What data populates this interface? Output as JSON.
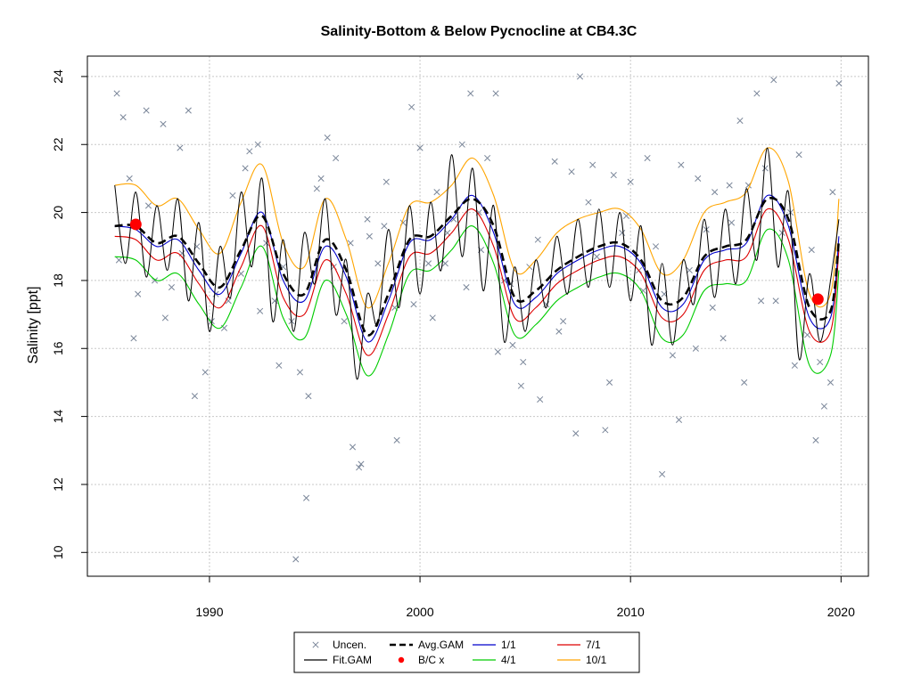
{
  "chart_data": {
    "type": "line",
    "title": "Salinity-Bottom & Below Pycnocline at CB4.3C",
    "xlabel": "",
    "ylabel": "Salinity [ppt]",
    "xlim": [
      1984.2,
      2021.3
    ],
    "ylim": [
      9.3,
      24.6
    ],
    "xticks": [
      1990,
      2000,
      2010,
      2020
    ],
    "yticks": [
      10,
      12,
      14,
      16,
      18,
      20,
      22,
      24
    ],
    "grid": true,
    "legend_position": "bottom-center",
    "legend": [
      {
        "label": "Uncen.",
        "kind": "marker-x",
        "color": "#7a8699"
      },
      {
        "label": "Avg.GAM",
        "kind": "dashed-line",
        "color": "#000000"
      },
      {
        "label": "1/1",
        "kind": "line",
        "color": "#0000cc"
      },
      {
        "label": "7/1",
        "kind": "line",
        "color": "#dd0000"
      },
      {
        "label": "Fit.GAM",
        "kind": "line",
        "color": "#000000"
      },
      {
        "label": "B/C x",
        "kind": "marker-dot",
        "color": "#ff0000"
      },
      {
        "label": "4/1",
        "kind": "line",
        "color": "#00cc00"
      },
      {
        "label": "10/1",
        "kind": "line",
        "color": "#ffa500"
      }
    ],
    "colors": {
      "uncen": "#7a8699",
      "avg": "#000000",
      "fit": "#000000",
      "d1_1": "#0000cc",
      "d7_1": "#dd0000",
      "d4_1": "#00cc00",
      "d10_1": "#ffa500",
      "bc": "#ff0000"
    },
    "series": [
      {
        "name": "Avg.GAM",
        "x": [
          1985.5,
          1986.5,
          1987.5,
          1988.5,
          1989.5,
          1990.5,
          1991.5,
          1992.5,
          1993.5,
          1994.5,
          1995.5,
          1996.5,
          1997.5,
          1998.5,
          1999.5,
          2000.5,
          2001.5,
          2002.5,
          2003.5,
          2004.5,
          2005.5,
          2006.5,
          2007.5,
          2008.5,
          2009.5,
          2010.5,
          2011.5,
          2012.5,
          2013.5,
          2014.5,
          2015.5,
          2016.5,
          2017.5,
          2018.5,
          2019.5,
          2019.9
        ],
        "y": [
          19.6,
          19.6,
          19.1,
          19.3,
          18.5,
          17.8,
          18.9,
          19.9,
          18.2,
          17.6,
          19.2,
          18.3,
          16.4,
          17.6,
          19.2,
          19.3,
          19.9,
          20.4,
          19.6,
          17.5,
          17.7,
          18.3,
          18.7,
          19.0,
          19.1,
          18.6,
          17.4,
          17.5,
          18.7,
          19.0,
          19.2,
          20.4,
          19.8,
          17.2,
          17.1,
          19.2
        ]
      },
      {
        "name": "1/1",
        "x": [
          1985.5,
          1986.5,
          1987.5,
          1988.5,
          1989.5,
          1990.5,
          1991.5,
          1992.5,
          1993.5,
          1994.5,
          1995.5,
          1996.5,
          1997.5,
          1998.5,
          1999.5,
          2000.5,
          2001.5,
          2002.5,
          2003.5,
          2004.5,
          2005.5,
          2006.5,
          2007.5,
          2008.5,
          2009.5,
          2010.5,
          2011.5,
          2012.5,
          2013.5,
          2014.5,
          2015.5,
          2016.5,
          2017.5,
          2018.5,
          2019.5,
          2019.9
        ],
        "y": [
          19.6,
          19.5,
          19.0,
          19.2,
          18.3,
          17.6,
          18.8,
          20.0,
          18.0,
          17.4,
          19.0,
          18.1,
          16.2,
          17.4,
          19.1,
          19.2,
          19.8,
          20.5,
          19.4,
          17.3,
          17.5,
          18.2,
          18.6,
          18.9,
          19.0,
          18.5,
          17.2,
          17.3,
          18.6,
          18.9,
          19.1,
          20.5,
          19.6,
          16.9,
          16.9,
          19.3
        ]
      },
      {
        "name": "7/1",
        "x": [
          1985.5,
          1986.5,
          1987.5,
          1988.5,
          1989.5,
          1990.5,
          1991.5,
          1992.5,
          1993.5,
          1994.5,
          1995.5,
          1996.5,
          1997.5,
          1998.5,
          1999.5,
          2000.5,
          2001.5,
          2002.5,
          2003.5,
          2004.5,
          2005.5,
          2006.5,
          2007.5,
          2008.5,
          2009.5,
          2010.5,
          2011.5,
          2012.5,
          2013.5,
          2014.5,
          2015.5,
          2016.5,
          2017.5,
          2018.5,
          2019.5,
          2019.9
        ],
        "y": [
          19.3,
          19.2,
          18.6,
          18.8,
          17.9,
          17.2,
          18.4,
          19.6,
          17.5,
          17.0,
          18.6,
          17.6,
          15.8,
          17.0,
          18.7,
          18.8,
          19.4,
          20.1,
          19.0,
          16.9,
          17.2,
          17.9,
          18.3,
          18.6,
          18.7,
          18.2,
          16.9,
          17.0,
          18.3,
          18.6,
          18.7,
          20.1,
          19.2,
          16.5,
          16.5,
          18.9
        ]
      },
      {
        "name": "4/1",
        "x": [
          1985.5,
          1986.5,
          1987.5,
          1988.5,
          1989.5,
          1990.5,
          1991.5,
          1992.5,
          1993.5,
          1994.5,
          1995.5,
          1996.5,
          1997.5,
          1998.5,
          1999.5,
          2000.5,
          2001.5,
          2002.5,
          2003.5,
          2004.5,
          2005.5,
          2006.5,
          2007.5,
          2008.5,
          2009.5,
          2010.5,
          2011.5,
          2012.5,
          2013.5,
          2014.5,
          2015.5,
          2016.5,
          2017.5,
          2018.5,
          2019.5,
          2019.9
        ],
        "y": [
          18.7,
          18.6,
          18.0,
          18.2,
          17.3,
          16.6,
          17.8,
          19.0,
          16.9,
          16.3,
          18.0,
          17.0,
          15.2,
          16.4,
          18.2,
          18.3,
          18.9,
          19.6,
          18.5,
          16.4,
          16.7,
          17.4,
          17.8,
          18.1,
          18.2,
          17.7,
          16.3,
          16.4,
          17.7,
          17.9,
          18.0,
          19.5,
          18.6,
          15.5,
          15.8,
          18.3
        ]
      },
      {
        "name": "10/1",
        "x": [
          1985.5,
          1986.5,
          1987.5,
          1988.5,
          1989.5,
          1990.5,
          1991.5,
          1992.5,
          1993.5,
          1994.5,
          1995.5,
          1996.5,
          1997.5,
          1998.5,
          1999.5,
          2000.5,
          2001.5,
          2002.5,
          2003.5,
          2004.5,
          2005.5,
          2006.5,
          2007.5,
          2008.5,
          2009.5,
          2010.5,
          2011.5,
          2012.5,
          2013.5,
          2014.5,
          2015.5,
          2016.5,
          2017.5,
          2018.5,
          2019.5,
          2019.9
        ],
        "y": [
          20.8,
          20.8,
          20.2,
          20.4,
          19.5,
          18.8,
          20.3,
          21.4,
          19.1,
          18.4,
          20.4,
          19.2,
          17.2,
          18.5,
          20.2,
          20.3,
          20.8,
          21.6,
          20.5,
          18.3,
          18.6,
          19.4,
          19.8,
          20.0,
          20.1,
          19.5,
          18.2,
          18.6,
          20.0,
          20.3,
          20.6,
          21.9,
          20.9,
          17.6,
          17.6,
          20.4
        ]
      },
      {
        "name": "Fit.GAM",
        "x": [
          1985.5,
          1986.0,
          1986.5,
          1987.0,
          1987.5,
          1988.0,
          1988.5,
          1989.0,
          1989.5,
          1990.0,
          1990.5,
          1991.0,
          1991.5,
          1992.0,
          1992.5,
          1993.0,
          1993.5,
          1994.0,
          1994.5,
          1995.0,
          1995.5,
          1996.0,
          1996.5,
          1997.0,
          1997.5,
          1998.0,
          1998.5,
          1999.0,
          1999.5,
          2000.0,
          2000.5,
          2001.0,
          2001.5,
          2002.0,
          2002.5,
          2003.0,
          2003.5,
          2004.0,
          2004.5,
          2005.0,
          2005.5,
          2006.0,
          2006.5,
          2007.0,
          2007.5,
          2008.0,
          2008.5,
          2009.0,
          2009.5,
          2010.0,
          2010.5,
          2011.0,
          2011.5,
          2012.0,
          2012.5,
          2013.0,
          2013.5,
          2014.0,
          2014.5,
          2015.0,
          2015.5,
          2016.0,
          2016.5,
          2017.0,
          2017.5,
          2018.0,
          2018.5,
          2019.0,
          2019.5,
          2019.9
        ],
        "y": [
          20.8,
          18.5,
          20.6,
          18.1,
          20.2,
          18.3,
          20.4,
          17.4,
          19.7,
          16.5,
          19.0,
          17.5,
          20.6,
          18.4,
          21.0,
          16.8,
          19.2,
          16.5,
          19.4,
          17.9,
          20.4,
          17.0,
          18.6,
          15.1,
          17.6,
          16.7,
          19.5,
          17.2,
          20.2,
          17.6,
          20.3,
          18.3,
          21.7,
          18.7,
          21.3,
          17.7,
          20.2,
          16.2,
          18.4,
          16.5,
          18.6,
          17.2,
          19.3,
          17.6,
          19.8,
          17.8,
          20.1,
          17.8,
          20.0,
          17.4,
          19.6,
          16.1,
          18.5,
          16.1,
          18.6,
          17.3,
          19.8,
          17.5,
          20.1,
          17.9,
          20.7,
          18.6,
          21.9,
          18.4,
          20.6,
          15.7,
          18.2,
          16.2,
          18.0,
          19.8
        ]
      }
    ],
    "uncensored_x": [
      1985.6,
      1985.9,
      1986.2,
      1986.6,
      1987.0,
      1987.4,
      1987.8,
      1988.2,
      1988.6,
      1989.0,
      1989.4,
      1989.8,
      1990.3,
      1990.7,
      1991.1,
      1991.5,
      1991.9,
      1992.3,
      1992.7,
      1993.1,
      1993.5,
      1993.9,
      1994.3,
      1994.7,
      1995.1,
      1995.6,
      1996.0,
      1996.4,
      1996.8,
      1997.2,
      1997.6,
      1998.0,
      1998.4,
      1998.8,
      1999.2,
      1999.6,
      2000.0,
      2000.4,
      2000.8,
      2001.2,
      2001.6,
      2002.0,
      2002.4,
      2002.8,
      2003.2,
      2003.6,
      2004.0,
      2004.4,
      2004.8,
      2005.2,
      2005.6,
      2006.0,
      2006.4,
      2006.8,
      2007.2,
      2007.6,
      2008.0,
      2008.4,
      2008.8,
      2009.2,
      2009.6,
      2010.0,
      2010.4,
      2010.8,
      2011.2,
      2011.6,
      2012.0,
      2012.4,
      2012.8,
      2013.2,
      2013.6,
      2014.0,
      2014.4,
      2014.8,
      2015.2,
      2015.6,
      2016.0,
      2016.4,
      2016.8,
      2017.2,
      2017.6,
      2018.0,
      2018.4,
      2018.8,
      2019.2,
      2019.6,
      2019.9,
      1985.7,
      1986.4,
      1987.1,
      1987.9,
      1988.7,
      1989.3,
      1990.1,
      1990.9,
      1991.7,
      1992.4,
      1993.3,
      1994.1,
      1994.6,
      1995.3,
      1995.9,
      1996.7,
      1997.1,
      1997.5,
      1998.3,
      1998.9,
      1999.7,
      2000.6,
      2001.3,
      2002.2,
      2002.9,
      2003.7,
      2004.3,
      2004.9,
      2005.7,
      2006.6,
      2007.4,
      2008.2,
      2009.0,
      2009.8,
      2010.6,
      2011.5,
      2012.3,
      2013.1,
      2013.9,
      2014.7,
      2015.4,
      2016.2,
      2016.9,
      2017.8,
      2018.6,
      2019.0,
      2019.5
    ],
    "uncensored_y": [
      23.5,
      22.8,
      21.0,
      17.6,
      23.0,
      18.0,
      22.6,
      17.8,
      21.9,
      23.0,
      19.0,
      15.3,
      17.6,
      16.6,
      20.5,
      18.2,
      21.8,
      22.0,
      19.1,
      17.4,
      18.4,
      16.8,
      15.3,
      14.6,
      20.7,
      22.2,
      21.6,
      16.8,
      13.1,
      12.6,
      19.3,
      18.5,
      20.9,
      17.2,
      19.7,
      23.1,
      21.9,
      18.5,
      20.6,
      18.5,
      19.8,
      22.0,
      23.5,
      20.0,
      21.6,
      23.5,
      18.0,
      16.1,
      14.9,
      18.4,
      19.2,
      17.3,
      21.5,
      16.8,
      21.2,
      24.0,
      20.3,
      18.7,
      13.6,
      21.1,
      19.4,
      20.9,
      18.3,
      21.6,
      19.0,
      17.6,
      15.8,
      21.4,
      18.3,
      21.0,
      19.5,
      20.6,
      16.3,
      19.7,
      22.7,
      20.8,
      23.5,
      21.3,
      23.9,
      19.4,
      20.0,
      21.7,
      16.4,
      13.3,
      14.3,
      20.6,
      23.8,
      18.6,
      16.3,
      20.2,
      16.9,
      18.8,
      14.6,
      16.8,
      17.4,
      21.3,
      17.1,
      15.5,
      9.8,
      11.6,
      21.0,
      18.4,
      19.1,
      12.5,
      19.8,
      19.6,
      13.3,
      17.3,
      16.9,
      19.4,
      17.8,
      18.9,
      15.9,
      17.9,
      15.6,
      14.5,
      16.5,
      13.5,
      21.4,
      15.0,
      19.9,
      17.7,
      12.3,
      13.9,
      16.0,
      17.2,
      20.8,
      15.0,
      17.4,
      17.4,
      15.5,
      18.9,
      15.6,
      15.0,
      16.9
    ],
    "bc_points": [
      {
        "x": 1986.5,
        "y": 19.65
      },
      {
        "x": 2018.9,
        "y": 17.45
      }
    ]
  }
}
